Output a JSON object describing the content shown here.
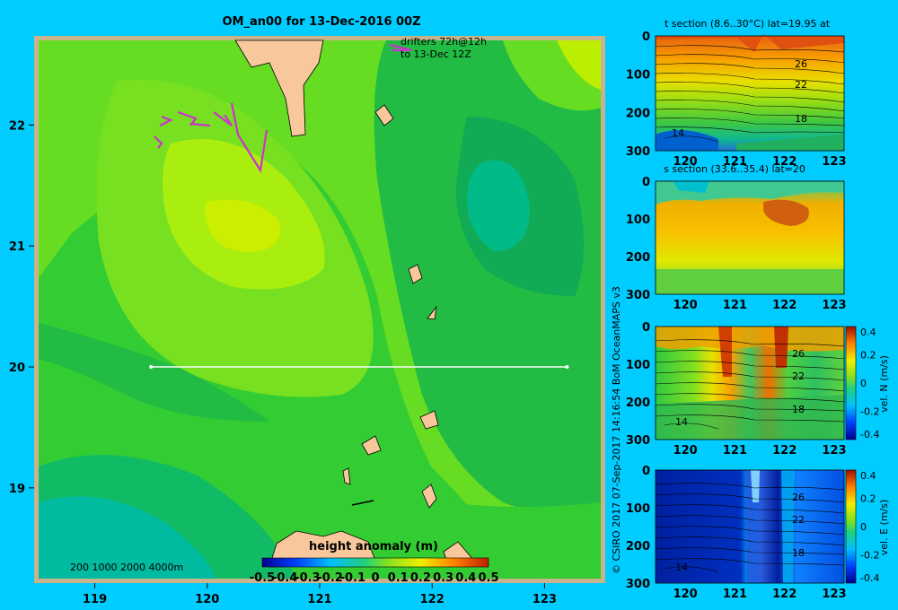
{
  "chart_data": [
    {
      "type": "heatmap",
      "title": "OM_an00 for 13-Dec-2016 00Z",
      "annotation": [
        "drifters 72h@12h",
        "to 13-Dec 12Z"
      ],
      "xlim": [
        118.5,
        123.5
      ],
      "ylim": [
        18.25,
        22.7
      ],
      "xticks": [
        "119",
        "120",
        "121",
        "122",
        "123"
      ],
      "yticks": [
        "19",
        "20",
        "21",
        "22"
      ],
      "section_line": {
        "x": [
          119.5,
          123.2
        ],
        "y": [
          20,
          20
        ]
      },
      "depth_legend": "200 1000 2000 4000m",
      "colorbar": {
        "label": "height anomaly (m)",
        "ticks": [
          "-0.5",
          "-0.4",
          "-0.3",
          "-0.2",
          "-0.1",
          "0",
          "0.1",
          "0.2",
          "0.3",
          "0.4",
          "0.5"
        ],
        "range": [
          -0.5,
          0.5
        ]
      }
    },
    {
      "type": "heatmap",
      "title": "t section (8.6..30°C) lat=19.95 at",
      "xticks": [
        "120",
        "121",
        "122",
        "123"
      ],
      "yticks": [
        "0",
        "100",
        "200",
        "300"
      ],
      "contour_labels": [
        "26",
        "22",
        "18",
        "14"
      ]
    },
    {
      "type": "heatmap",
      "title": "s section (33.6..35.4) lat=20",
      "xticks": [
        "120",
        "121",
        "122",
        "123"
      ],
      "yticks": [
        "0",
        "100",
        "200",
        "300"
      ]
    },
    {
      "type": "heatmap",
      "title": "vel. N (m/s)",
      "xticks": [
        "120",
        "121",
        "122",
        "123"
      ],
      "yticks": [
        "0",
        "100",
        "200",
        "300"
      ],
      "contour_labels": [
        "26",
        "22",
        "18",
        "14"
      ],
      "colorbar": {
        "ticks": [
          "0.4",
          "0.2",
          "0",
          "-0.2",
          "-0.4"
        ],
        "label": "vel. N (m/s)"
      }
    },
    {
      "type": "heatmap",
      "title": "vel. E (m/s)",
      "xticks": [
        "120",
        "121",
        "122",
        "123"
      ],
      "yticks": [
        "0",
        "100",
        "200",
        "300"
      ],
      "contour_labels": [
        "26",
        "22",
        "18",
        "14"
      ],
      "colorbar": {
        "ticks": [
          "0.4",
          "0.2",
          "0",
          "-0.2",
          "-0.4"
        ],
        "label": "vel. E (m/s)"
      }
    }
  ],
  "credit": "© CSIRO 2017   07-Sep-2017 14:16:54 BoM OceanMAPS v3"
}
